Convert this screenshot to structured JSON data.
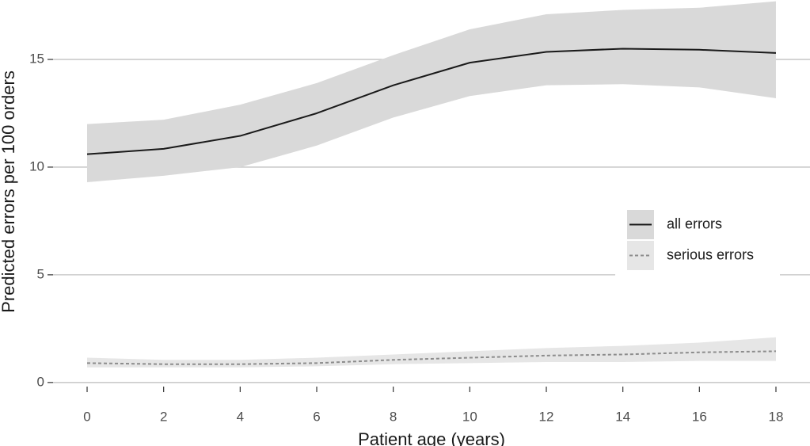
{
  "chart_data": {
    "type": "line",
    "x_label": "Patient age (years)",
    "y_label": "Predicted errors per 100 orders",
    "x": [
      0,
      2,
      4,
      6,
      8,
      10,
      12,
      14,
      16,
      18
    ],
    "series": [
      {
        "name": "all errors",
        "color": "#1a1a1a",
        "dash": false,
        "band_color": "#d9d9d9",
        "values": [
          10.6,
          10.85,
          11.45,
          12.5,
          13.8,
          14.85,
          15.35,
          15.5,
          15.45,
          15.3
        ],
        "lower": [
          9.3,
          9.6,
          10.0,
          11.0,
          12.3,
          13.3,
          13.8,
          13.85,
          13.7,
          13.2
        ],
        "upper": [
          12.0,
          12.2,
          12.9,
          13.9,
          15.2,
          16.4,
          17.1,
          17.3,
          17.4,
          17.7
        ]
      },
      {
        "name": "serious errors",
        "color": "#8c8c8c",
        "dash": true,
        "band_color": "#e6e6e6",
        "values": [
          0.9,
          0.85,
          0.85,
          0.9,
          1.05,
          1.15,
          1.25,
          1.3,
          1.4,
          1.45
        ],
        "lower": [
          0.7,
          0.7,
          0.7,
          0.75,
          0.85,
          0.9,
          0.95,
          0.95,
          1.0,
          1.0
        ],
        "upper": [
          1.15,
          1.05,
          1.05,
          1.15,
          1.3,
          1.45,
          1.6,
          1.7,
          1.85,
          2.1
        ]
      }
    ],
    "xlim": [
      -0.89,
      18.89
    ],
    "ylim": [
      -1.0,
      17.76
    ],
    "xticks": [
      0,
      2,
      4,
      6,
      8,
      10,
      12,
      14,
      16,
      18
    ],
    "yticks": [
      0,
      5,
      10,
      15
    ],
    "grid": true,
    "legend": "right"
  }
}
